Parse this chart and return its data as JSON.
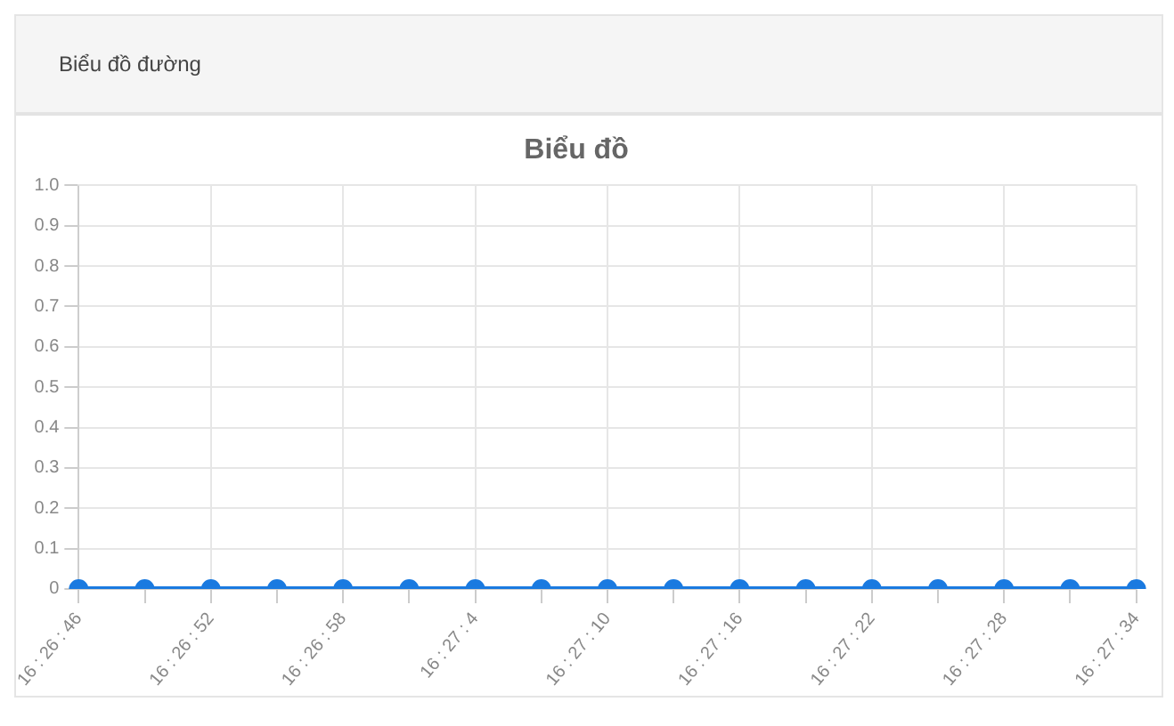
{
  "chart_data": {
    "type": "line",
    "title": "Biểu đồ",
    "annotations": [
      "Biểu đồ đường"
    ],
    "categories": [
      "16 : 26 : 46",
      null,
      "16 : 26 : 52",
      null,
      "16 : 26 : 58",
      null,
      "16 : 27 : 4",
      null,
      "16 : 27 : 10",
      null,
      "16 : 27 : 16",
      null,
      "16 : 27 : 22",
      null,
      "16 : 27 : 28",
      null,
      "16 : 27 : 34"
    ],
    "series": [
      {
        "color": "#1a7ae0",
        "values": [
          0,
          0,
          0,
          0,
          0,
          0,
          0,
          0,
          0,
          0,
          0,
          0,
          0,
          0,
          0,
          0,
          0
        ]
      }
    ],
    "ylim": [
      0,
      1
    ],
    "yticks": [
      0,
      0.1,
      0.2,
      0.3,
      0.4,
      0.5,
      0.6,
      0.7,
      0.8,
      0.9,
      {
        "value": 1,
        "label": "1.0"
      }
    ],
    "grid": true,
    "marker": "circle",
    "line_style": "solid"
  }
}
